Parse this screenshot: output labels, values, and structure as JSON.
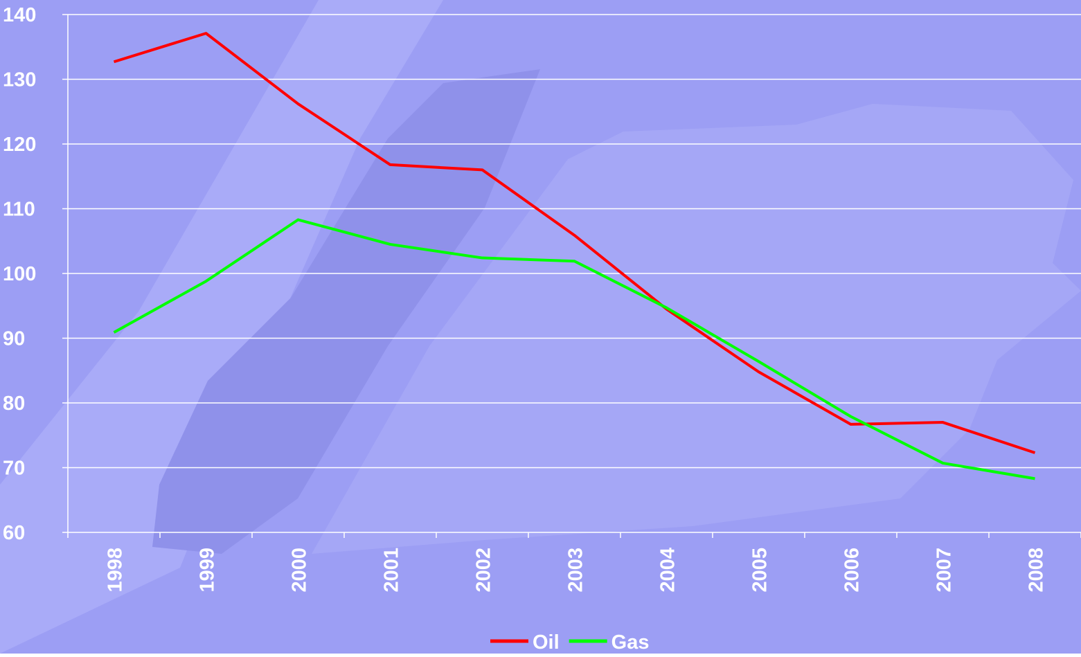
{
  "chart_data": {
    "type": "line",
    "categories": [
      "1998",
      "1999",
      "2000",
      "2001",
      "2002",
      "2003",
      "2004",
      "2005",
      "2006",
      "2007",
      "2008"
    ],
    "series": [
      {
        "name": "Oil",
        "color": "#ff0000",
        "values": [
          132.7,
          137.1,
          126.2,
          116.8,
          116.0,
          105.9,
          94.5,
          84.8,
          76.7,
          77.0,
          72.3
        ]
      },
      {
        "name": "Gas",
        "color": "#00ff00",
        "values": [
          90.9,
          98.8,
          108.3,
          104.5,
          102.4,
          101.9,
          94.7,
          86.4,
          77.9,
          70.7,
          68.3
        ]
      }
    ],
    "ylim": [
      60,
      140
    ],
    "yticks": [
      60,
      70,
      80,
      90,
      100,
      110,
      120,
      130,
      140
    ],
    "grid": true,
    "legend": "bottom"
  }
}
